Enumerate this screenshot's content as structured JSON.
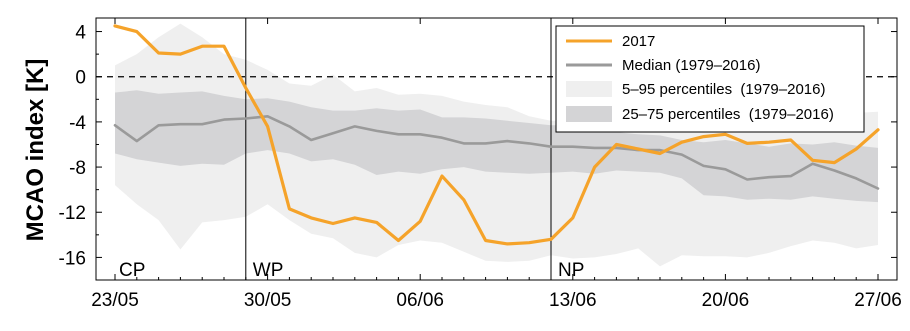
{
  "chart_data": {
    "type": "line",
    "title": "",
    "xlabel": "",
    "ylabel": "MCAO index [K]",
    "ylim": [
      -18,
      5.2
    ],
    "yticks": [
      4,
      0,
      -4,
      -8,
      -12,
      -16
    ],
    "ytick_labels": [
      "4",
      "0",
      "-4",
      "-8",
      "-12",
      "-16"
    ],
    "x_start": "2017-05-23",
    "x_end": "2017-06-27",
    "xtick_dates": [
      "2017-05-23",
      "2017-05-30",
      "2017-06-06",
      "2017-06-13",
      "2017-06-20",
      "2017-06-27"
    ],
    "xtick_labels": [
      "23/05",
      "30/05",
      "06/06",
      "13/06",
      "20/06",
      "27/06"
    ],
    "zero_line": {
      "value": 0,
      "style": "dashed"
    },
    "period_markers": [
      {
        "label": "CP",
        "date": "2017-05-23"
      },
      {
        "label": "WP",
        "date": "2017-05-29"
      },
      {
        "label": "NP",
        "date": "2017-06-12"
      }
    ],
    "legend_position": "top-right",
    "dates": [
      "2017-05-23",
      "2017-05-24",
      "2017-05-25",
      "2017-05-26",
      "2017-05-27",
      "2017-05-28",
      "2017-05-29",
      "2017-05-30",
      "2017-05-31",
      "2017-06-01",
      "2017-06-02",
      "2017-06-03",
      "2017-06-04",
      "2017-06-05",
      "2017-06-06",
      "2017-06-07",
      "2017-06-08",
      "2017-06-09",
      "2017-06-10",
      "2017-06-11",
      "2017-06-12",
      "2017-06-13",
      "2017-06-14",
      "2017-06-15",
      "2017-06-16",
      "2017-06-17",
      "2017-06-18",
      "2017-06-19",
      "2017-06-20",
      "2017-06-21",
      "2017-06-22",
      "2017-06-23",
      "2017-06-24",
      "2017-06-25",
      "2017-06-26",
      "2017-06-27"
    ],
    "series": [
      {
        "name": "2017",
        "kind": "line",
        "color": "#f5a32a",
        "values": [
          4.5,
          4.0,
          2.1,
          2.0,
          2.7,
          2.7,
          -1.0,
          -4.4,
          -11.7,
          -12.5,
          -13.0,
          -12.5,
          -12.9,
          -14.5,
          -12.8,
          -8.8,
          -10.9,
          -14.5,
          -14.8,
          -14.7,
          -14.4,
          -12.5,
          -8.0,
          -6.0,
          -6.4,
          -6.8,
          -5.8,
          -5.3,
          -5.1,
          -5.9,
          -5.8,
          -5.6,
          -7.4,
          -7.6,
          -6.4,
          -4.7
        ]
      },
      {
        "name": "Median (1979–2016)",
        "kind": "line",
        "color": "#9a9a9a",
        "values": [
          -4.3,
          -5.7,
          -4.3,
          -4.2,
          -4.2,
          -3.8,
          -3.7,
          -3.5,
          -4.4,
          -5.6,
          -5.0,
          -4.4,
          -4.8,
          -5.1,
          -5.1,
          -5.4,
          -5.9,
          -5.9,
          -5.7,
          -5.9,
          -6.2,
          -6.2,
          -6.3,
          -6.3,
          -6.5,
          -6.5,
          -6.9,
          -7.9,
          -8.2,
          -9.1,
          -8.9,
          -8.8,
          -7.7,
          -8.3,
          -9.0,
          -9.9
        ]
      },
      {
        "name": "5–95 percentiles  (1979–2016)",
        "kind": "band",
        "color": "#efefef",
        "upper": [
          1.0,
          2.0,
          3.5,
          4.7,
          3.5,
          2.0,
          1.5,
          0.6,
          -0.6,
          -0.8,
          0.2,
          -1.3,
          -1.0,
          -1.6,
          -1.5,
          -1.7,
          -2.2,
          -2.5,
          -2.7,
          -3.5,
          -3.9,
          -3.9,
          -3.8,
          -3.6,
          -3.8,
          -3.7,
          -3.3,
          -3.2,
          -3.4,
          -3.6,
          -3.5,
          -3.4,
          -3.3,
          -3.6,
          -3.2,
          -3.1
        ],
        "lower": [
          -9.6,
          -11.3,
          -12.7,
          -15.3,
          -12.9,
          -12.7,
          -12.4,
          -11.3,
          -12.7,
          -13.9,
          -14.3,
          -15.6,
          -16.0,
          -14.9,
          -14.5,
          -14.7,
          -15.5,
          -16.3,
          -16.4,
          -16.3,
          -15.8,
          -16.1,
          -16.0,
          -15.7,
          -15.2,
          -16.8,
          -15.8,
          -15.9,
          -15.9,
          -16.0,
          -15.6,
          -15.0,
          -14.5,
          -14.7,
          -15.2,
          -14.9
        ]
      },
      {
        "name": "25–75 percentiles  (1979–2016)",
        "kind": "band",
        "color": "#d4d4d6",
        "upper": [
          -1.4,
          -1.2,
          -1.5,
          -1.4,
          -1.3,
          -1.7,
          -2.0,
          -1.9,
          -2.2,
          -2.7,
          -3.0,
          -3.0,
          -2.8,
          -3.0,
          -2.9,
          -3.6,
          -3.6,
          -3.7,
          -3.9,
          -4.1,
          -4.3,
          -4.3,
          -4.7,
          -4.9,
          -5.1,
          -5.2,
          -5.6,
          -5.8,
          -5.6,
          -5.9,
          -6.2,
          -5.9,
          -6.0,
          -5.8,
          -6.1,
          -6.3
        ],
        "lower": [
          -6.8,
          -7.3,
          -7.6,
          -7.9,
          -7.7,
          -7.8,
          -6.8,
          -6.5,
          -6.8,
          -7.5,
          -7.3,
          -7.8,
          -8.7,
          -8.4,
          -8.6,
          -8.2,
          -8.0,
          -8.4,
          -8.5,
          -8.6,
          -8.5,
          -8.4,
          -8.6,
          -8.3,
          -8.4,
          -8.5,
          -9.0,
          -10.5,
          -10.6,
          -10.9,
          -10.8,
          -10.9,
          -10.6,
          -10.8,
          -11.0,
          -11.1
        ]
      }
    ]
  }
}
